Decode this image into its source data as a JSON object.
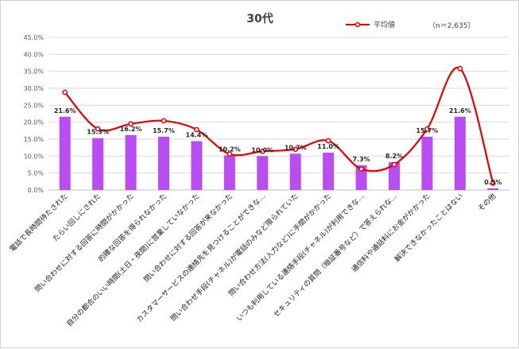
{
  "chart_data": {
    "type": "bar",
    "title": "30代",
    "note": "（n＝2,635）",
    "ylim": [
      0,
      45
    ],
    "yticks": [
      "0.0%",
      "5.0%",
      "10.0%",
      "15.0%",
      "20.0%",
      "25.0%",
      "30.0%",
      "35.0%",
      "40.0%",
      "45.0%"
    ],
    "ytick_values": [
      0,
      5,
      10,
      15,
      20,
      25,
      30,
      35,
      40,
      45
    ],
    "grid": true,
    "legend_position": "top-right",
    "bar_color": "#b94cf2",
    "line_color": "#e60000",
    "categories": [
      "電話で長時間待たされた",
      "たらい回しにされた",
      "問い合わせに対する回答に時間がかかった",
      "的確な回答を得られなかった",
      "自分の都合のいい時間(土日・夜間)に営業していなかった",
      "問い合わせに対する回答が来なかった",
      "カスタマーサービスの連絡先を見つけることができな…",
      "問い合わせ手段(チャネル)が電話のみなど限られていた",
      "問い合わせ方法(入力など)に手間がかかった",
      "いつも利用している連絡手段(チャネル)が利用できな…",
      "セキュリティの質問（暗証番号など）で答えられな…",
      "通信料や通話料にお金がかかった",
      "解決できなかったことはない",
      "その他"
    ],
    "series": [
      {
        "type": "bar",
        "values": [
          21.6,
          15.3,
          16.2,
          15.7,
          14.4,
          10.2,
          10.0,
          10.7,
          11.0,
          7.3,
          8.2,
          15.7,
          21.6,
          0.5
        ],
        "labels": [
          "21.6%",
          "15.3%",
          "16.2%",
          "15.7%",
          "14.4%",
          "10.2%",
          "10.0%",
          "10.7%",
          "11.0%",
          "7.3%",
          "8.2%",
          "15.7%",
          "21.6%",
          "0.5%"
        ]
      },
      {
        "type": "line",
        "name": "平均値",
        "values": [
          28.8,
          18.0,
          19.5,
          20.4,
          17.8,
          10.6,
          11.4,
          12.0,
          14.5,
          6.2,
          7.5,
          18.0,
          35.8,
          2.0
        ]
      }
    ]
  }
}
